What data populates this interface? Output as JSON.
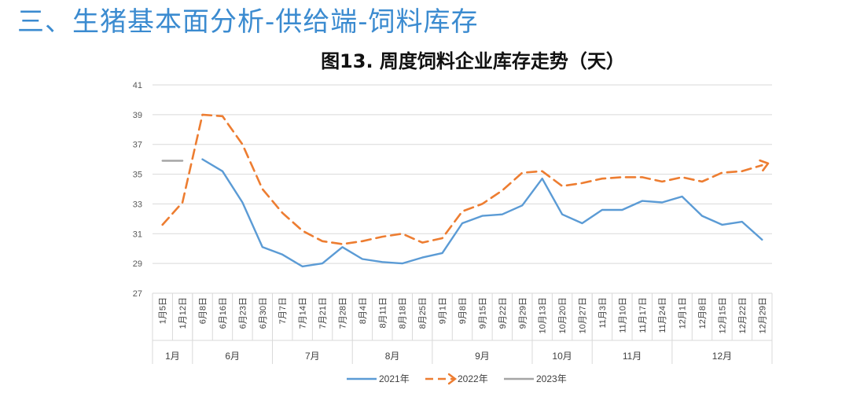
{
  "page": {
    "heading": "三、生猪基本面分析-供给端-饲料库存"
  },
  "chart_data": {
    "type": "line",
    "title": "图13. 周度饲料企业库存走势（天）",
    "ylim": [
      27,
      41
    ],
    "yticks": [
      "41",
      "39",
      "37",
      "35",
      "33",
      "31",
      "29",
      "27"
    ],
    "categories": [
      "1月5日",
      "1月12日",
      "6月8日",
      "6月16日",
      "6月23日",
      "6月30日",
      "7月7日",
      "7月14日",
      "7月21日",
      "7月28日",
      "8月4日",
      "8月11日",
      "8月18日",
      "8月25日",
      "9月1日",
      "9月8日",
      "9月15日",
      "9月22日",
      "9月29日",
      "10月13日",
      "10月20日",
      "10月27日",
      "11月3日",
      "11月10日",
      "11月17日",
      "11月24日",
      "12月1日",
      "12月8日",
      "12月15日",
      "12月22日",
      "12月29日"
    ],
    "months": [
      {
        "label": "1月",
        "start": 0,
        "end": 1
      },
      {
        "label": "6月",
        "start": 2,
        "end": 5
      },
      {
        "label": "7月",
        "start": 6,
        "end": 9
      },
      {
        "label": "8月",
        "start": 10,
        "end": 13
      },
      {
        "label": "9月",
        "start": 14,
        "end": 18
      },
      {
        "label": "10月",
        "start": 19,
        "end": 21
      },
      {
        "label": "11月",
        "start": 22,
        "end": 25
      },
      {
        "label": "12月",
        "start": 26,
        "end": 30
      }
    ],
    "series": [
      {
        "name": "2021年",
        "color": "#5b9bd5",
        "style": "solid",
        "values": [
          null,
          null,
          36.0,
          35.2,
          33.1,
          30.1,
          29.6,
          28.8,
          29.0,
          30.1,
          29.3,
          29.1,
          29.0,
          29.4,
          29.7,
          31.7,
          32.2,
          32.3,
          32.9,
          34.7,
          32.3,
          31.7,
          32.6,
          32.6,
          33.2,
          33.1,
          33.5,
          32.2,
          31.6,
          31.8,
          30.6
        ]
      },
      {
        "name": "2022年",
        "color": "#ed7d31",
        "style": "dashed",
        "values": [
          31.6,
          33.1,
          39.0,
          38.9,
          37.0,
          34.0,
          32.4,
          31.2,
          30.5,
          30.3,
          30.5,
          30.8,
          31.0,
          30.4,
          30.7,
          32.5,
          33.0,
          33.9,
          35.1,
          35.2,
          34.2,
          34.4,
          34.7,
          34.8,
          34.8,
          34.5,
          34.8,
          34.5,
          35.1,
          35.2,
          35.6
        ]
      },
      {
        "name": "2023年",
        "color": "#a5a5a5",
        "style": "solid",
        "values": [
          35.9,
          35.9,
          null,
          null,
          null,
          null,
          null,
          null,
          null,
          null,
          null,
          null,
          null,
          null,
          null,
          null,
          null,
          null,
          null,
          null,
          null,
          null,
          null,
          null,
          null,
          null,
          null,
          null,
          null,
          null,
          null
        ]
      }
    ],
    "legend": "bottom"
  }
}
